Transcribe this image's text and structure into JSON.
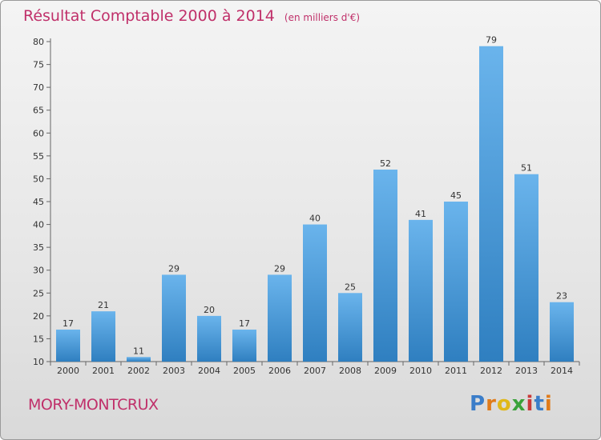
{
  "header": {
    "title": "Résultat Comptable 2000 à 2014",
    "unit": "(en milliers d'€)"
  },
  "footer": {
    "place": "MORY-MONTCRUX",
    "logo": [
      "P",
      "r",
      "o",
      "x",
      "i",
      "t",
      "i"
    ]
  },
  "colors": {
    "title": "#c0306a",
    "bar_top": "#6ab4ec",
    "bar_bottom": "#2f7fc0",
    "logo": [
      "#3a7dc9",
      "#e07b1a",
      "#e0b81a",
      "#3aa23a",
      "#c93a3a",
      "#3a7dc9",
      "#e07b1a"
    ]
  },
  "chart_data": {
    "type": "bar",
    "title": "Résultat Comptable 2000 à 2014",
    "subtitle": "(en milliers d'€)",
    "xlabel": "",
    "ylabel": "",
    "categories": [
      "2000",
      "2001",
      "2002",
      "2003",
      "2004",
      "2005",
      "2006",
      "2007",
      "2008",
      "2009",
      "2010",
      "2011",
      "2012",
      "2013",
      "2014"
    ],
    "values": [
      17,
      21,
      11,
      29,
      20,
      17,
      29,
      40,
      25,
      52,
      41,
      45,
      79,
      51,
      23
    ],
    "ylim": [
      10,
      80
    ],
    "yticks": [
      10,
      15,
      20,
      25,
      30,
      35,
      40,
      45,
      50,
      55,
      60,
      65,
      70,
      75,
      80
    ],
    "grid": false
  }
}
